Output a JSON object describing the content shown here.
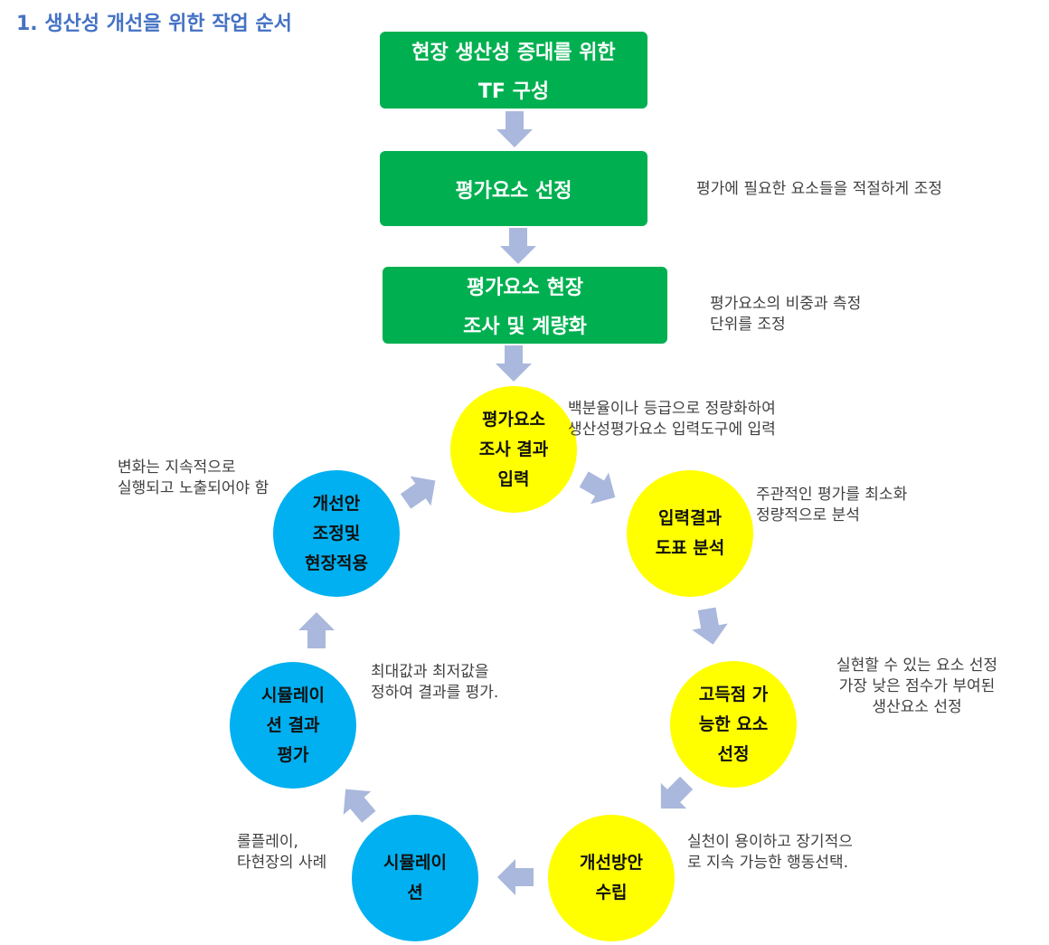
{
  "title": "1. 생산성 개선을 위한 작업 순서",
  "steps": [
    {
      "line1": "현장 생산성 증대를 위한",
      "line2": "TF 구성"
    },
    {
      "line1": "평가요소 선정"
    },
    {
      "line1": "평가요소 현장",
      "line2": "조사 및 계량화"
    }
  ],
  "cycle": [
    {
      "lines": [
        "평가요소",
        "조사 결과",
        "입력"
      ],
      "color": "#ffff00"
    },
    {
      "lines": [
        "입력결과",
        "도표 분석"
      ],
      "color": "#ffff00"
    },
    {
      "lines": [
        "고득점 가",
        "능한 요소",
        "선정"
      ],
      "color": "#ffff00"
    },
    {
      "lines": [
        "개선방안",
        "수립"
      ],
      "color": "#ffff00"
    },
    {
      "lines": [
        "시뮬레이",
        "션"
      ],
      "color": "#00b0f0"
    },
    {
      "lines": [
        "시뮬레이",
        "션 결과",
        "평가"
      ],
      "color": "#00b0f0"
    },
    {
      "lines": [
        "개선안",
        "조정및",
        "현장적용"
      ],
      "color": "#00b0f0"
    }
  ],
  "notes": {
    "n1": "평가에 필요한 요소들을 적절하게 조정",
    "n2": "평가요소의 비중과 측정\n단위를 조정",
    "n3": "백분율이나 등급으로 정량화하여\n생산성평가요소 입력도구에 입력",
    "n4": "주관적인 평가를 최소화\n정량적으로 분석",
    "n5": "실현할 수 있는 요소 선정\n가장 낮은 점수가 부여된\n생산요소 선정",
    "n6": "실천이 용이하고 장기적으\n로 지속 가능한 행동선택.",
    "n7": "롤플레이,\n타현장의 사례",
    "n8": "최대값과 최저값을\n정하여 결과를 평가.",
    "n9": "변화는 지속적으로\n실행되고 노출되어야 함"
  },
  "colors": {
    "green": "#00b050",
    "arrow": "#a9b8dc",
    "title": "#4472c4"
  }
}
